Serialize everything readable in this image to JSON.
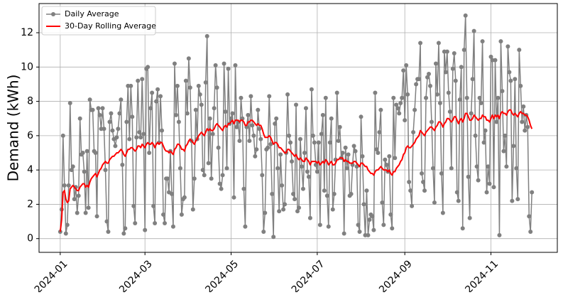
{
  "chart_data": {
    "type": "line",
    "ylabel": "Demand (kWh)",
    "xlim": [
      "2023-12-17",
      "2024-12-18"
    ],
    "ylim": [
      -0.8,
      13.7
    ],
    "xticks": [
      {
        "value": "2024-01-01",
        "label": "2024-01"
      },
      {
        "value": "2024-03-01",
        "label": "2024-03"
      },
      {
        "value": "2024-05-01",
        "label": "2024-05"
      },
      {
        "value": "2024-07-01",
        "label": "2024-07"
      },
      {
        "value": "2024-09-01",
        "label": "2024-09"
      },
      {
        "value": "2024-11-01",
        "label": "2024-11"
      }
    ],
    "yticks": [
      0,
      2,
      4,
      6,
      8,
      10,
      12
    ],
    "grid": true,
    "legend": "upper left",
    "x": [
      "2024-01-01",
      "2024-01-02",
      "2024-01-03",
      "2024-01-04",
      "2024-01-05",
      "2024-01-06",
      "2024-01-07",
      "2024-01-08",
      "2024-01-09",
      "2024-01-10",
      "2024-01-11",
      "2024-01-12",
      "2024-01-13",
      "2024-01-14",
      "2024-01-15",
      "2024-01-16",
      "2024-01-17",
      "2024-01-18",
      "2024-01-19",
      "2024-01-20",
      "2024-01-21",
      "2024-01-22",
      "2024-01-23",
      "2024-01-24",
      "2024-01-25",
      "2024-01-26",
      "2024-01-27",
      "2024-01-28",
      "2024-01-29",
      "2024-01-30",
      "2024-01-31",
      "2024-02-01",
      "2024-02-02",
      "2024-02-03",
      "2024-02-04",
      "2024-02-05",
      "2024-02-06",
      "2024-02-07",
      "2024-02-08",
      "2024-02-09",
      "2024-02-10",
      "2024-02-11",
      "2024-02-12",
      "2024-02-13",
      "2024-02-14",
      "2024-02-15",
      "2024-02-16",
      "2024-02-17",
      "2024-02-18",
      "2024-02-19",
      "2024-02-20",
      "2024-02-21",
      "2024-02-22",
      "2024-02-23",
      "2024-02-24",
      "2024-02-25",
      "2024-02-26",
      "2024-02-27",
      "2024-02-28",
      "2024-02-29",
      "2024-03-01",
      "2024-03-02",
      "2024-03-03",
      "2024-03-04",
      "2024-03-05",
      "2024-03-06",
      "2024-03-07",
      "2024-03-08",
      "2024-03-09",
      "2024-03-10",
      "2024-03-11",
      "2024-03-12",
      "2024-03-13",
      "2024-03-14",
      "2024-03-15",
      "2024-03-16",
      "2024-03-17",
      "2024-03-18",
      "2024-03-19",
      "2024-03-20",
      "2024-03-21",
      "2024-03-22",
      "2024-03-23",
      "2024-03-24",
      "2024-03-25",
      "2024-03-26",
      "2024-03-27",
      "2024-03-28",
      "2024-03-29",
      "2024-03-30",
      "2024-03-31",
      "2024-04-01",
      "2024-04-02",
      "2024-04-03",
      "2024-04-04",
      "2024-04-05",
      "2024-04-06",
      "2024-04-07",
      "2024-04-08",
      "2024-04-09",
      "2024-04-10",
      "2024-04-11",
      "2024-04-12",
      "2024-04-13",
      "2024-04-14",
      "2024-04-15",
      "2024-04-16",
      "2024-04-17",
      "2024-04-18",
      "2024-04-19",
      "2024-04-20",
      "2024-04-21",
      "2024-04-22",
      "2024-04-23",
      "2024-04-24",
      "2024-04-25",
      "2024-04-26",
      "2024-04-27",
      "2024-04-28",
      "2024-04-29",
      "2024-04-30",
      "2024-05-01",
      "2024-05-02",
      "2024-05-03",
      "2024-05-04",
      "2024-05-05",
      "2024-05-06",
      "2024-05-07",
      "2024-05-08",
      "2024-05-09",
      "2024-05-10",
      "2024-05-11",
      "2024-05-12",
      "2024-05-13",
      "2024-05-14",
      "2024-05-15",
      "2024-05-16",
      "2024-05-17",
      "2024-05-18",
      "2024-05-19",
      "2024-05-20",
      "2024-05-21",
      "2024-05-22",
      "2024-05-23",
      "2024-05-24",
      "2024-05-25",
      "2024-05-26",
      "2024-05-27",
      "2024-05-28",
      "2024-05-29",
      "2024-05-30",
      "2024-05-31",
      "2024-06-01",
      "2024-06-02",
      "2024-06-03",
      "2024-06-04",
      "2024-06-05",
      "2024-06-06",
      "2024-06-07",
      "2024-06-08",
      "2024-06-09",
      "2024-06-10",
      "2024-06-11",
      "2024-06-12",
      "2024-06-13",
      "2024-06-14",
      "2024-06-15",
      "2024-06-16",
      "2024-06-17",
      "2024-06-18",
      "2024-06-19",
      "2024-06-20",
      "2024-06-21",
      "2024-06-22",
      "2024-06-23",
      "2024-06-24",
      "2024-06-25",
      "2024-06-26",
      "2024-06-27",
      "2024-06-28",
      "2024-06-29",
      "2024-06-30",
      "2024-07-01",
      "2024-07-02",
      "2024-07-03",
      "2024-07-04",
      "2024-07-05",
      "2024-07-06",
      "2024-07-07",
      "2024-07-08",
      "2024-07-09",
      "2024-07-10",
      "2024-07-11",
      "2024-07-12",
      "2024-07-13",
      "2024-07-14",
      "2024-07-15",
      "2024-07-16",
      "2024-07-17",
      "2024-07-18",
      "2024-07-19",
      "2024-07-20",
      "2024-07-21",
      "2024-07-22",
      "2024-07-23",
      "2024-07-24",
      "2024-07-25",
      "2024-07-26",
      "2024-07-27",
      "2024-07-28",
      "2024-07-29",
      "2024-07-30",
      "2024-07-31",
      "2024-08-01",
      "2024-08-02",
      "2024-08-03",
      "2024-08-04",
      "2024-08-05",
      "2024-08-06",
      "2024-08-07",
      "2024-08-08",
      "2024-08-09",
      "2024-08-10",
      "2024-08-11",
      "2024-08-12",
      "2024-08-13",
      "2024-08-14",
      "2024-08-15",
      "2024-08-16",
      "2024-08-17",
      "2024-08-18",
      "2024-08-19",
      "2024-08-20",
      "2024-08-21",
      "2024-08-22",
      "2024-08-23",
      "2024-08-24",
      "2024-08-25",
      "2024-08-26",
      "2024-08-27",
      "2024-08-28",
      "2024-08-29",
      "2024-08-30",
      "2024-08-31",
      "2024-09-01",
      "2024-09-02",
      "2024-09-03",
      "2024-09-04",
      "2024-09-05",
      "2024-09-06",
      "2024-09-07",
      "2024-09-08",
      "2024-09-09",
      "2024-09-10",
      "2024-09-11",
      "2024-09-12",
      "2024-09-13",
      "2024-09-14",
      "2024-09-15",
      "2024-09-16",
      "2024-09-17",
      "2024-09-18",
      "2024-09-19",
      "2024-09-20",
      "2024-09-21",
      "2024-09-22",
      "2024-09-23",
      "2024-09-24",
      "2024-09-25",
      "2024-09-26",
      "2024-09-27",
      "2024-09-28",
      "2024-09-29",
      "2024-09-30",
      "2024-10-01",
      "2024-10-02",
      "2024-10-03",
      "2024-10-04",
      "2024-10-05",
      "2024-10-06",
      "2024-10-07",
      "2024-10-08",
      "2024-10-09",
      "2024-10-10",
      "2024-10-11",
      "2024-10-12",
      "2024-10-13",
      "2024-10-14",
      "2024-10-15",
      "2024-10-16",
      "2024-10-17",
      "2024-10-18",
      "2024-10-19",
      "2024-10-20",
      "2024-10-21",
      "2024-10-22",
      "2024-10-23",
      "2024-10-24",
      "2024-10-25",
      "2024-10-26",
      "2024-10-27",
      "2024-10-28",
      "2024-10-29",
      "2024-10-30",
      "2024-10-31",
      "2024-11-01",
      "2024-11-02",
      "2024-11-03",
      "2024-11-04",
      "2024-11-05",
      "2024-11-06",
      "2024-11-07",
      "2024-11-08",
      "2024-11-09",
      "2024-11-10",
      "2024-11-11",
      "2024-11-12",
      "2024-11-13",
      "2024-11-14",
      "2024-11-15",
      "2024-11-16",
      "2024-11-17",
      "2024-11-18",
      "2024-11-19",
      "2024-11-20",
      "2024-11-21",
      "2024-11-22",
      "2024-11-23",
      "2024-11-24",
      "2024-11-25",
      "2024-11-26",
      "2024-11-27",
      "2024-11-28",
      "2024-11-29",
      "2024-11-30"
    ],
    "series": [
      {
        "name": "Daily Average",
        "color": "#808080",
        "marker": true,
        "values": [
          0.4,
          1.7,
          6.0,
          3.1,
          0.3,
          0.8,
          3.1,
          7.9,
          4.0,
          4.2,
          2.3,
          3.0,
          1.5,
          2.5,
          7.0,
          4.9,
          5.0,
          3.9,
          1.5,
          5.1,
          1.8,
          8.1,
          7.5,
          7.5,
          5.1,
          5.0,
          1.3,
          7.6,
          7.2,
          6.4,
          7.6,
          6.4,
          4.0,
          1.0,
          0.4,
          6.8,
          7.3,
          6.3,
          5.8,
          5.4,
          5.9,
          6.4,
          7.3,
          8.1,
          4.3,
          0.3,
          0.6,
          6.8,
          8.9,
          5.8,
          8.9,
          7.1,
          1.9,
          0.9,
          5.9,
          9.2,
          6.2,
          5.9,
          9.3,
          6.1,
          0.5,
          9.9,
          10.0,
          5.0,
          7.6,
          8.5,
          1.9,
          0.9,
          8.0,
          8.7,
          5.6,
          8.3,
          6.3,
          1.4,
          0.9,
          3.5,
          3.5,
          2.7,
          5.1,
          2.6,
          0.7,
          10.2,
          7.2,
          8.9,
          6.8,
          4.1,
          1.4,
          2.3,
          2.4,
          9.2,
          7.3,
          10.5,
          8.8,
          5.7,
          1.7,
          3.5,
          7.5,
          5.8,
          8.9,
          8.4,
          7.8,
          4.0,
          3.7,
          9.1,
          11.8,
          4.4,
          7.0,
          3.5,
          6.1,
          7.6,
          10.1,
          8.8,
          5.3,
          3.2,
          2.9,
          3.7,
          10.2,
          7.4,
          4.1,
          9.9,
          6.7,
          7.0,
          7.3,
          2.4,
          10.1,
          6.5,
          6.8,
          5.7,
          8.2,
          7.0,
          2.9,
          0.7,
          6.5,
          7.2,
          5.7,
          8.3,
          6.6,
          6.0,
          4.8,
          5.2,
          7.5,
          6.4,
          5.8,
          3.7,
          0.4,
          1.5,
          5.2,
          5.3,
          8.3,
          5.5,
          2.6,
          0.1,
          6.7,
          7.0,
          4.1,
          1.6,
          4.9,
          3.1,
          1.7,
          2.0,
          5.0,
          8.4,
          6.0,
          5.6,
          4.5,
          2.6,
          2.3,
          7.8,
          1.6,
          1.8,
          5.8,
          4.2,
          2.9,
          5.0,
          7.6,
          3.9,
          3.6,
          1.2,
          8.7,
          6.0,
          5.6,
          4.3,
          3.9,
          5.6,
          0.8,
          6.1,
          7.2,
          2.8,
          8.2,
          2.5,
          0.7,
          5.6,
          7.0,
          1.7,
          2.6,
          4.6,
          8.5,
          5.7,
          6.5,
          4.7,
          5.0,
          0.3,
          5.3,
          4.1,
          4.9,
          2.5,
          2.6,
          4.3,
          5.4,
          5.1,
          4.2,
          0.8,
          0.4,
          7.1,
          4.8,
          2.0,
          0.2,
          2.8,
          0.2,
          1.1,
          1.4,
          1.3,
          0.5,
          8.5,
          5.2,
          5.0,
          6.2,
          7.5,
          2.1,
          0.8,
          4.6,
          4.3,
          3.9,
          4.8,
          1.4,
          0.6,
          8.2,
          4.7,
          7.8,
          7.6,
          7.3,
          7.9,
          8.2,
          9.8,
          6.9,
          10.1,
          8.4,
          3.3,
          2.8,
          1.9,
          6.2,
          7.5,
          9.0,
          9.3,
          9.3,
          11.4,
          3.8,
          3.3,
          2.8,
          8.2,
          9.4,
          9.6,
          8.9,
          6.8,
          4.1,
          2.1,
          10.2,
          8.4,
          11.4,
          7.9,
          3.8,
          1.5,
          10.9,
          9.7,
          10.9,
          8.5,
          7.4,
          4.1,
          9.9,
          10.8,
          9.2,
          2.7,
          2.2,
          8.1,
          10.0,
          0.6,
          11.0,
          13.0,
          8.2,
          3.6,
          1.2,
          7.3,
          9.3,
          12.1,
          6.0,
          4.2,
          3.4,
          8.2,
          7.9,
          11.5,
          5.6,
          6.3,
          2.7,
          4.2,
          3.2,
          10.6,
          10.4,
          3.0,
          10.4,
          6.8,
          8.2,
          0.2,
          11.5,
          8.6,
          5.1,
          6.0,
          4.2,
          11.2,
          9.7,
          9.2,
          2.2,
          5.4,
          9.3,
          4.1,
          2.3,
          11.0,
          8.9,
          6.8,
          7.7,
          6.3,
          7.2,
          6.5,
          1.3,
          0.4,
          2.7
        ]
      },
      {
        "name": "30-Day Rolling Average",
        "color": "#ff0000",
        "marker": false,
        "values": [
          0.4,
          1.1,
          2.7,
          2.8,
          2.3,
          2.1,
          2.2,
          2.9,
          3.0,
          3.1,
          3.0,
          2.9,
          2.8,
          2.8,
          3.0,
          3.1,
          3.2,
          3.2,
          3.0,
          3.1,
          3.0,
          3.3,
          3.5,
          3.6,
          3.7,
          3.8,
          3.6,
          3.8,
          4.0,
          4.1,
          4.3,
          4.4,
          4.5,
          4.4,
          4.4,
          4.6,
          4.7,
          4.8,
          4.8,
          4.9,
          5.0,
          5.0,
          5.1,
          5.2,
          5.1,
          4.9,
          4.8,
          5.0,
          5.2,
          5.2,
          5.3,
          5.3,
          5.2,
          5.1,
          5.2,
          5.4,
          5.4,
          5.3,
          5.5,
          5.4,
          5.3,
          5.5,
          5.6,
          5.5,
          5.5,
          5.6,
          5.5,
          5.3,
          5.5,
          5.6,
          5.5,
          5.6,
          5.6,
          5.4,
          5.2,
          5.1,
          5.1,
          5.0,
          5.1,
          5.0,
          4.9,
          5.2,
          5.3,
          5.5,
          5.5,
          5.4,
          5.2,
          5.2,
          5.1,
          5.4,
          5.5,
          5.7,
          5.8,
          5.7,
          5.6,
          5.5,
          5.7,
          5.8,
          6.0,
          6.1,
          6.2,
          6.1,
          6.0,
          6.2,
          6.4,
          6.3,
          6.4,
          6.3,
          6.3,
          6.4,
          6.6,
          6.7,
          6.6,
          6.5,
          6.4,
          6.3,
          6.5,
          6.6,
          6.5,
          6.7,
          6.7,
          6.8,
          6.9,
          6.7,
          6.9,
          6.9,
          6.9,
          6.8,
          6.9,
          6.9,
          6.8,
          6.6,
          6.6,
          6.8,
          6.8,
          6.9,
          6.9,
          6.8,
          6.7,
          6.6,
          6.7,
          6.6,
          6.6,
          6.4,
          6.1,
          5.9,
          5.9,
          5.9,
          6.0,
          5.9,
          5.7,
          5.5,
          5.6,
          5.6,
          5.5,
          5.3,
          5.3,
          5.2,
          5.1,
          5.0,
          5.0,
          5.2,
          5.2,
          5.1,
          5.0,
          4.9,
          4.8,
          4.9,
          4.7,
          4.6,
          4.7,
          4.6,
          4.5,
          4.5,
          4.7,
          4.6,
          4.5,
          4.3,
          4.5,
          4.5,
          4.5,
          4.5,
          4.4,
          4.5,
          4.3,
          4.4,
          4.5,
          4.4,
          4.6,
          4.5,
          4.3,
          4.4,
          4.5,
          4.3,
          4.3,
          4.4,
          4.6,
          4.6,
          4.7,
          4.7,
          4.7,
          4.5,
          4.6,
          4.5,
          4.5,
          4.4,
          4.4,
          4.4,
          4.5,
          4.5,
          4.4,
          4.3,
          4.2,
          4.4,
          4.4,
          4.3,
          4.2,
          4.2,
          4.0,
          3.9,
          3.8,
          3.8,
          3.7,
          3.9,
          4.0,
          4.0,
          4.1,
          4.2,
          4.1,
          4.0,
          4.0,
          4.0,
          3.9,
          4.0,
          3.8,
          3.7,
          3.9,
          3.9,
          4.1,
          4.2,
          4.3,
          4.5,
          4.6,
          4.9,
          5.0,
          5.3,
          5.4,
          5.3,
          5.3,
          5.4,
          5.5,
          5.6,
          5.8,
          5.9,
          6.0,
          6.3,
          6.2,
          6.1,
          6.0,
          6.2,
          6.3,
          6.4,
          6.5,
          6.5,
          6.4,
          6.3,
          6.5,
          6.6,
          6.8,
          6.8,
          6.7,
          6.5,
          6.7,
          6.8,
          7.0,
          7.0,
          6.9,
          6.8,
          6.9,
          7.1,
          7.1,
          6.9,
          6.7,
          6.9,
          7.0,
          6.8,
          7.0,
          7.3,
          7.3,
          7.1,
          6.9,
          6.9,
          7.0,
          7.2,
          7.1,
          7.0,
          6.9,
          7.0,
          7.0,
          7.2,
          7.1,
          7.1,
          6.9,
          6.9,
          6.8,
          7.0,
          7.2,
          7.0,
          7.2,
          7.1,
          7.2,
          7.0,
          7.3,
          7.4,
          7.3,
          7.3,
          7.2,
          7.4,
          7.5,
          7.5,
          7.3,
          7.2,
          7.3,
          7.2,
          7.1,
          7.3,
          7.4,
          7.3,
          7.3,
          7.2,
          7.2,
          7.1,
          6.9,
          6.6,
          6.4
        ]
      }
    ]
  }
}
